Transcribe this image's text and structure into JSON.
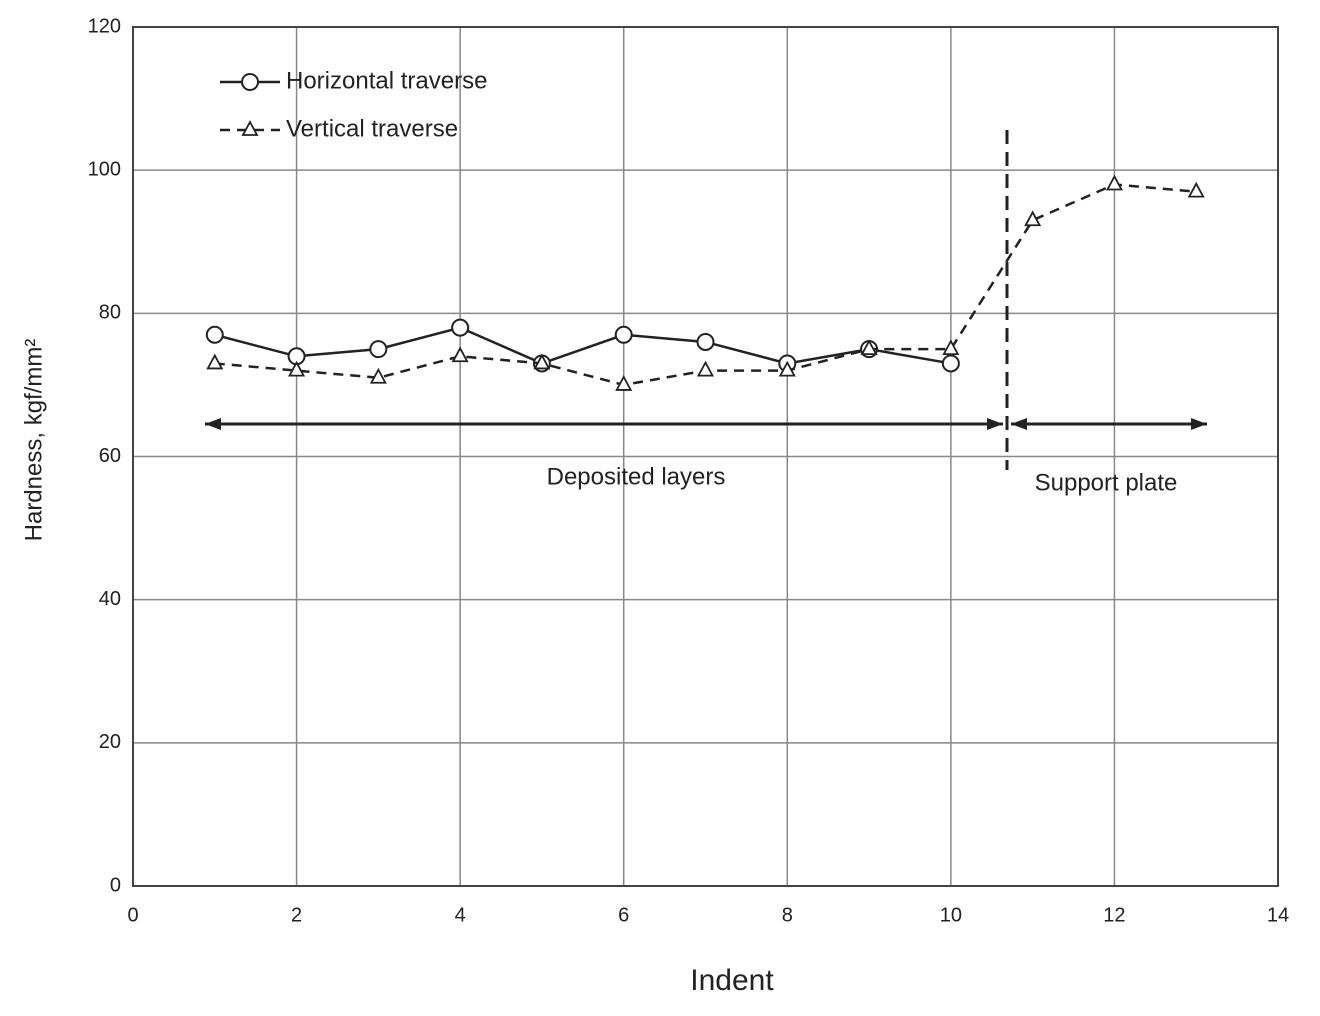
{
  "chart_data": {
    "type": "line",
    "xlabel": "Indent",
    "ylabel": "Hardness, kgf/mm²",
    "series": [
      {
        "name": "Horizontal traverse",
        "color": "#222222",
        "line_style": "solid",
        "marker": "circle",
        "x": [
          1,
          2,
          3,
          4,
          5,
          6,
          7,
          8,
          9,
          10
        ],
        "values": [
          77,
          74,
          75,
          78,
          73,
          77,
          76,
          73,
          75,
          73
        ]
      },
      {
        "name": "Vertical traverse",
        "color": "#222222",
        "line_style": "dashed",
        "marker": "triangle",
        "x": [
          1,
          2,
          3,
          4,
          5,
          6,
          7,
          8,
          9,
          10,
          11,
          12,
          13
        ],
        "values": [
          73,
          72,
          71,
          74,
          73,
          70,
          72,
          72,
          75,
          75,
          93,
          98,
          97
        ]
      }
    ],
    "xlim": [
      0,
      14
    ],
    "xticks": [
      0,
      2,
      4,
      6,
      8,
      10,
      12,
      14
    ],
    "ylim": [
      0,
      120
    ],
    "yticks": [
      0,
      20,
      40,
      60,
      80,
      100,
      120
    ],
    "grid": true,
    "legend": "upper left",
    "annotations": [
      "Deposited layers",
      "Support plate"
    ]
  }
}
